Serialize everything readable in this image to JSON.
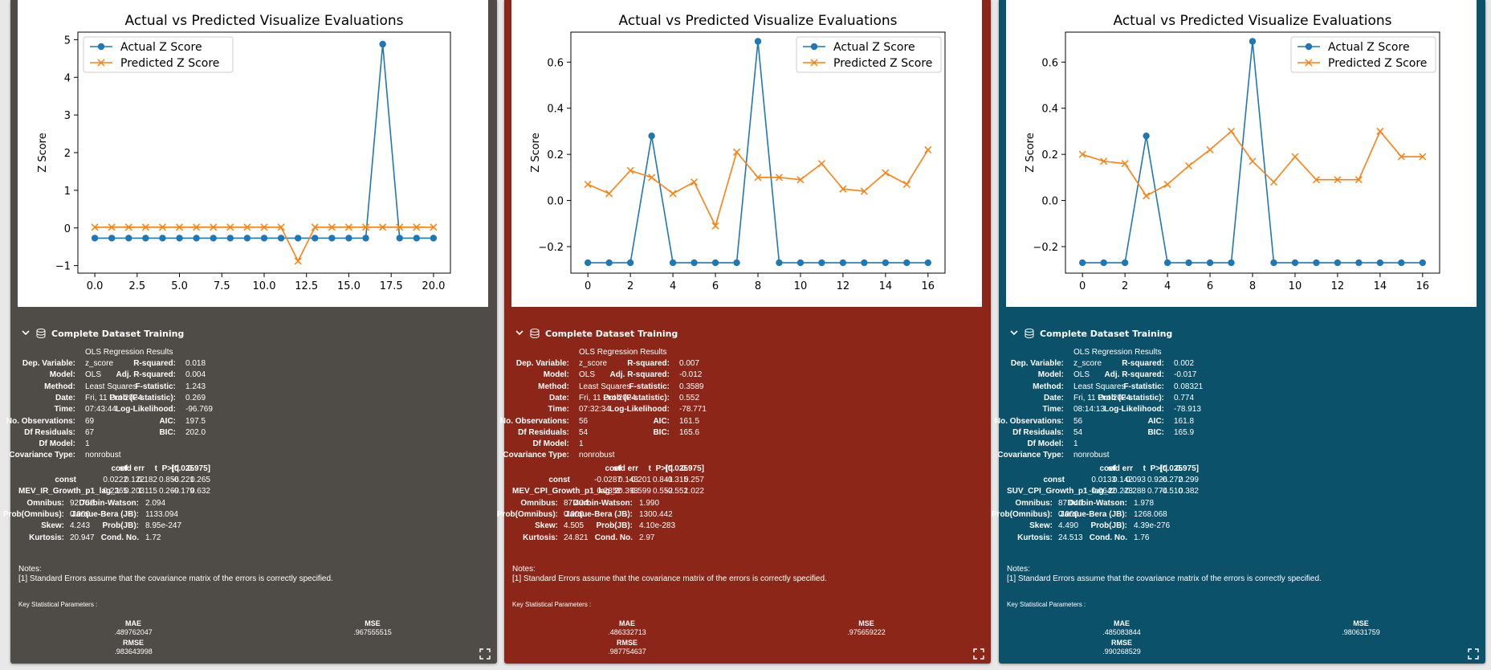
{
  "panels": [
    {
      "bg": "#4f4b47",
      "chart_title": "Actual vs Predicted Visualize Evaluations",
      "section_title": "Complete Dataset Training",
      "ols": {
        "title": "OLS Regression Results",
        "left_labels": [
          "Dep. Variable:",
          "Model:",
          "Method:",
          "Date:",
          "Time:",
          "No. Observations:",
          "Df Residuals:",
          "Df Model:",
          "Covariance Type:"
        ],
        "left_values": [
          "z_score",
          "OLS",
          "Least Squares",
          "Fri, 11 Oct 2024",
          "07:43:44",
          "69",
          "67",
          "1",
          "nonrobust"
        ],
        "right_labels": [
          "R-squared:",
          "Adj. R-squared:",
          "F-statistic:",
          "Prob (F-statistic):",
          "Log-Likelihood:",
          "AIC:",
          "BIC:"
        ],
        "right_values": [
          "0.018",
          "0.004",
          "1.243",
          "0.269",
          "-96.769",
          "197.5",
          "202.0"
        ],
        "coef_header": [
          "coef",
          "std err",
          "t",
          "P>|t|",
          "[0.025",
          "0.975]"
        ],
        "coef_rows": [
          {
            "name": "const",
            "values": [
              "0.0222",
              "0.122",
              "0.182",
              "0.856",
              "-0.221",
              "0.265"
            ]
          },
          {
            "name": "MEV_IR_Growth_p1_lag_1",
            "values": [
              "0.2265",
              "0.203",
              "1.115",
              "0.269",
              "-0.179",
              "0.632"
            ]
          }
        ],
        "diag_left_labels": [
          "Omnibus:",
          "Prob(Omnibus):",
          "Skew:",
          "Kurtosis:"
        ],
        "diag_left_values": [
          "92.752",
          "0.000",
          "4.243",
          "20.947"
        ],
        "diag_right_labels": [
          "Durbin-Watson:",
          "Jarque-Bera (JB):",
          "Prob(JB):",
          "Cond. No."
        ],
        "diag_right_values": [
          "2.094",
          "1133.094",
          "8.95e-247",
          "1.72"
        ]
      },
      "notes_label": "Notes:",
      "notes_text": "[1] Standard Errors assume that the covariance matrix of the errors is correctly specified.",
      "key_params_label": "Key Statistical Parameters :",
      "mae_label": "MAE",
      "mae_value": ".489762047",
      "mse_label": "MSE",
      "mse_value": ".967555515",
      "rmse_label": "RMSE",
      "rmse_value": ".983643998"
    },
    {
      "bg": "#8c2618",
      "chart_title": "Actual vs Predicted Visualize Evaluations",
      "section_title": "Complete Dataset Training",
      "ols": {
        "title": "OLS Regression Results",
        "left_labels": [
          "Dep. Variable:",
          "Model:",
          "Method:",
          "Date:",
          "Time:",
          "No. Observations:",
          "Df Residuals:",
          "Df Model:",
          "Covariance Type:"
        ],
        "left_values": [
          "z_score",
          "OLS",
          "Least Squares",
          "Fri, 11 Oct 2024",
          "07:32:34",
          "56",
          "54",
          "1",
          "nonrobust"
        ],
        "right_labels": [
          "R-squared:",
          "Adj. R-squared:",
          "F-statistic:",
          "Prob (F-statistic):",
          "Log-Likelihood:",
          "AIC:",
          "BIC:"
        ],
        "right_values": [
          "0.007",
          "-0.012",
          "0.3589",
          "0.552",
          "-78.771",
          "161.5",
          "165.6"
        ],
        "coef_header": [
          "coef",
          "std err",
          "t",
          "P>|t|",
          "[0.025",
          "0.975]"
        ],
        "coef_rows": [
          {
            "name": "const",
            "values": [
              "-0.0287",
              "0.143",
              "-0.201",
              "0.841",
              "-0.315",
              "0.257"
            ]
          },
          {
            "name": "MEV_CPI_Growth_p1_lag_2",
            "values": [
              "0.2352",
              "0.393",
              "0.599",
              "0.552",
              "-0.552",
              "1.022"
            ]
          }
        ],
        "diag_left_labels": [
          "Omnibus:",
          "Prob(Omnibus):",
          "Skew:",
          "Kurtosis:"
        ],
        "diag_left_values": [
          "87.404",
          "0.000",
          "4.505",
          "24.821"
        ],
        "diag_right_labels": [
          "Durbin-Watson:",
          "Jarque-Bera (JB):",
          "Prob(JB):",
          "Cond. No."
        ],
        "diag_right_values": [
          "1.990",
          "1300.442",
          "4.10e-283",
          "2.97"
        ]
      },
      "notes_label": "Notes:",
      "notes_text": "[1] Standard Errors assume that the covariance matrix of the errors is correctly specified.",
      "key_params_label": "Key Statistical Parameters :",
      "mae_label": "MAE",
      "mae_value": ".486332713",
      "mse_label": "MSE",
      "mse_value": ".975659222",
      "rmse_label": "RMSE",
      "rmse_value": ".987754637"
    },
    {
      "bg": "#0b5169",
      "chart_title": "Actual vs Predicted Visualize Evaluations",
      "section_title": "Complete Dataset Training",
      "ols": {
        "title": "OLS Regression Results",
        "left_labels": [
          "Dep. Variable:",
          "Model:",
          "Method:",
          "Date:",
          "Time:",
          "No. Observations:",
          "Df Residuals:",
          "Df Model:",
          "Covariance Type:"
        ],
        "left_values": [
          "z_score",
          "OLS",
          "Least Squares",
          "Fri, 11 Oct 2024",
          "08:14:13",
          "56",
          "54",
          "1",
          "nonrobust"
        ],
        "right_labels": [
          "R-squared:",
          "Adj. R-squared:",
          "F-statistic:",
          "Prob (F-statistic):",
          "Log-Likelihood:",
          "AIC:",
          "BIC:"
        ],
        "right_values": [
          "0.002",
          "-0.017",
          "0.08321",
          "0.774",
          "-78.913",
          "161.8",
          "165.9"
        ],
        "coef_header": [
          "coef",
          "std err",
          "t",
          "P>|t|",
          "[0.025",
          "0.975]"
        ],
        "coef_rows": [
          {
            "name": "const",
            "values": [
              "0.0133",
              "0.142",
              "0.093",
              "0.926",
              "-0.272",
              "0.299"
            ]
          },
          {
            "name": "SUV_CPI_Growth_p1_lag_2",
            "values": [
              "-0.0642",
              "0.223",
              "-0.288",
              "0.774",
              "-0.510",
              "0.382"
            ]
          }
        ],
        "diag_left_labels": [
          "Omnibus:",
          "Prob(Omnibus):",
          "Skew:",
          "Kurtosis:"
        ],
        "diag_left_values": [
          "87.049",
          "0.000",
          "4.490",
          "24.513"
        ],
        "diag_right_labels": [
          "Durbin-Watson:",
          "Jarque-Bera (JB):",
          "Prob(JB):",
          "Cond. No."
        ],
        "diag_right_values": [
          "1.978",
          "1268.068",
          "4.39e-276",
          "1.76"
        ]
      },
      "notes_label": "Notes:",
      "notes_text": "[1] Standard Errors assume that the covariance matrix of the errors is correctly specified.",
      "key_params_label": "Key Statistical Parameters :",
      "mae_label": "MAE",
      "mae_value": ".485083844",
      "mse_label": "MSE",
      "mse_value": ".980631759",
      "rmse_label": "RMSE",
      "rmse_value": ".990268529"
    }
  ],
  "icons": {
    "chevron": "chevron-down-icon",
    "database": "database-icon",
    "expand": "expand-icon"
  },
  "chart_data": [
    {
      "type": "line",
      "title": "Actual vs Predicted Visualize Evaluations",
      "xlabel": "",
      "ylabel": "Z Score",
      "x": [
        0,
        1,
        2,
        3,
        4,
        5,
        6,
        7,
        8,
        9,
        10,
        11,
        12,
        13,
        14,
        15,
        16,
        17,
        18,
        19,
        20
      ],
      "xticks": [
        0,
        2.5,
        5,
        7.5,
        10,
        12.5,
        15,
        17.5,
        20
      ],
      "xtick_labels": [
        "0.0",
        "2.5",
        "5.0",
        "7.5",
        "10.0",
        "12.5",
        "15.0",
        "17.5",
        "20.0"
      ],
      "yticks": [
        -1,
        0,
        1,
        2,
        3,
        4,
        5
      ],
      "ytick_labels": [
        "−1",
        "0",
        "1",
        "2",
        "3",
        "4",
        "5"
      ],
      "xlim": [
        -1,
        21
      ],
      "ylim": [
        -1.2,
        5.2
      ],
      "legend": "top-left",
      "series": [
        {
          "name": "Actual Z Score",
          "color": "#1f77b4",
          "marker": "circle",
          "values": [
            -0.27,
            -0.27,
            -0.27,
            -0.27,
            -0.27,
            -0.27,
            -0.27,
            -0.27,
            -0.27,
            -0.27,
            -0.27,
            -0.27,
            -0.27,
            -0.27,
            -0.27,
            -0.27,
            -0.27,
            4.88,
            -0.27,
            -0.27,
            -0.27
          ]
        },
        {
          "name": "Predicted Z Score",
          "color": "#ff7f0e",
          "marker": "x",
          "values": [
            0.02,
            0.02,
            0.02,
            0.02,
            0.02,
            0.02,
            0.02,
            0.02,
            0.02,
            0.02,
            0.02,
            0.02,
            -0.88,
            0.02,
            0.02,
            0.02,
            0.02,
            0.02,
            0.02,
            0.02,
            0.02
          ]
        }
      ]
    },
    {
      "type": "line",
      "title": "Actual vs Predicted Visualize Evaluations",
      "xlabel": "",
      "ylabel": "Z Score",
      "x": [
        0,
        1,
        2,
        3,
        4,
        5,
        6,
        7,
        8,
        9,
        10,
        11,
        12,
        13,
        14,
        15,
        16
      ],
      "xticks": [
        0,
        2,
        4,
        6,
        8,
        10,
        12,
        14,
        16
      ],
      "xtick_labels": [
        "0",
        "2",
        "4",
        "6",
        "8",
        "10",
        "12",
        "14",
        "16"
      ],
      "yticks": [
        -0.2,
        0,
        0.2,
        0.4,
        0.6
      ],
      "ytick_labels": [
        "−0.2",
        "0.0",
        "0.2",
        "0.4",
        "0.6"
      ],
      "xlim": [
        -0.8,
        16.8
      ],
      "ylim": [
        -0.315,
        0.73
      ],
      "legend": "top-right",
      "series": [
        {
          "name": "Actual Z Score",
          "color": "#1f77b4",
          "marker": "circle",
          "values": [
            -0.27,
            -0.27,
            -0.27,
            0.28,
            -0.27,
            -0.27,
            -0.27,
            -0.27,
            0.69,
            -0.27,
            -0.27,
            -0.27,
            -0.27,
            -0.27,
            -0.27,
            -0.27,
            -0.27
          ]
        },
        {
          "name": "Predicted Z Score",
          "color": "#ff7f0e",
          "marker": "x",
          "values": [
            0.07,
            0.03,
            0.13,
            0.1,
            0.03,
            0.08,
            -0.11,
            0.21,
            0.1,
            0.1,
            0.09,
            0.16,
            0.05,
            0.04,
            0.12,
            0.07,
            0.22
          ]
        }
      ]
    },
    {
      "type": "line",
      "title": "Actual vs Predicted Visualize Evaluations",
      "xlabel": "",
      "ylabel": "Z Score",
      "x": [
        0,
        1,
        2,
        3,
        4,
        5,
        6,
        7,
        8,
        9,
        10,
        11,
        12,
        13,
        14,
        15,
        16
      ],
      "xticks": [
        0,
        2,
        4,
        6,
        8,
        10,
        12,
        14,
        16
      ],
      "xtick_labels": [
        "0",
        "2",
        "4",
        "6",
        "8",
        "10",
        "12",
        "14",
        "16"
      ],
      "yticks": [
        -0.2,
        0,
        0.2,
        0.4,
        0.6
      ],
      "ytick_labels": [
        "−0.2",
        "0.0",
        "0.2",
        "0.4",
        "0.6"
      ],
      "xlim": [
        -0.8,
        16.8
      ],
      "ylim": [
        -0.315,
        0.73
      ],
      "legend": "top-right",
      "series": [
        {
          "name": "Actual Z Score",
          "color": "#1f77b4",
          "marker": "circle",
          "values": [
            -0.27,
            -0.27,
            -0.27,
            0.28,
            -0.27,
            -0.27,
            -0.27,
            -0.27,
            0.69,
            -0.27,
            -0.27,
            -0.27,
            -0.27,
            -0.27,
            -0.27,
            -0.27,
            -0.27
          ]
        },
        {
          "name": "Predicted Z Score",
          "color": "#ff7f0e",
          "marker": "x",
          "values": [
            0.2,
            0.17,
            0.16,
            0.02,
            0.07,
            0.15,
            0.22,
            0.3,
            0.17,
            0.08,
            0.19,
            0.09,
            0.09,
            0.09,
            0.3,
            0.19,
            0.19
          ]
        }
      ]
    }
  ]
}
